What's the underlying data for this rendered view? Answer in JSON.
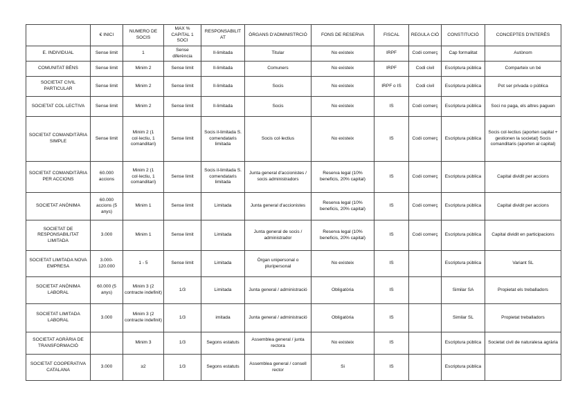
{
  "table": {
    "headers": [
      "",
      "€ INICI",
      "NUMERO DE SOCIS",
      "MAX % CAPITAL 1 SOCI",
      "RESPONSABILIT AT",
      "ÒRGANS D'ADMINISTRCIÓ",
      "FONS DE RESERVA",
      "FISCAL",
      "REGULA CIÓ",
      "CONSTITUCIÓ",
      "CONCEPTES D'INTERÈS"
    ],
    "rows": [
      [
        "E. INDIVIDUAL",
        "Sense limit",
        "1",
        "Sense diferència",
        "Il-limitada",
        "Titular",
        "No existeix",
        "IRPF",
        "Codi comerç",
        "Cap formalitat",
        "Autònom"
      ],
      [
        "COMUNITAT BÉNS",
        "Sense limit",
        "Minim 2",
        "Sense limit",
        "Il-limitada",
        "Comuners",
        "No existeix",
        "IRPF",
        "Codi civil",
        "Escriptura pública",
        "Comparteix un bé"
      ],
      [
        "SOCIETAT CIVIL PARTICULAR",
        "Sense limit",
        "Minim 2",
        "Sense limit",
        "Il-limitada",
        "Socis",
        "No existeix",
        "IRPF o IS",
        "Codi civil",
        "Escriptura pública",
        "Pot ser privada o pública"
      ],
      [
        "SOCIETAT COL·LECTIVA",
        "Sense limit",
        "Minim 2",
        "Sense limit",
        "Il-limitada",
        "Socis",
        "No existeix",
        "IS",
        "Codi comerç",
        "Escriptura pública",
        "Soci no paga, els altres paguen"
      ],
      [
        "SOCIETAT COMANDITÀRIA SIMPLE",
        "Sense limit",
        "Minim 2 (1 col·lectiu, 1 comanditari)",
        "Sense limit",
        "Socis il-limitada S. comendataris limitada",
        "Socis col·lectius",
        "No existeix",
        "IS",
        "Codi comerç",
        "Escriptura pública",
        "Socis col·lectius (aporten capital + gestionen la societat) Socis comanditaris (aporten al capital)"
      ],
      [
        "SOCIETAT COMANDITÀRIA PER ACCIONS",
        "60.000 accions",
        "Minim 2 (1 col·lectiu, 1 comanditari)",
        "Sense limit",
        "Socis il-limitada S. comendataris limitada",
        "Junta general d'accionistes / socis administradors",
        "Reserva legal (10% beneficis, 20% capital)",
        "IS",
        "Codi comerç",
        "Escriptura pública",
        "Capital dividit per accions"
      ],
      [
        "SOCIETAT ANÒNIMA",
        "60.000 accions (5 anys)",
        "Minim 1",
        "Sense limit",
        "Limitada",
        "Junta general d'accionistes",
        "Reserva legal (10% beneficis, 20% capital)",
        "IS",
        "Codi comerç",
        "Escriptura pública",
        "Capital dividit per accions"
      ],
      [
        "SOCIETAT DE RESPONSABILITAT LIMITADA",
        "3.000",
        "Minim 1",
        "Sense limit",
        "Limitada",
        "Junta general de socis / administrador",
        "Reserva legal (10% beneficis, 20% capital)",
        "IS",
        "Codi comerç",
        "Escriptura pública",
        "Capital dividit en participacions"
      ],
      [
        "SOCIETAT LIMITADA NOVA EMPRESA",
        "3.000-120.000",
        "1 - 5",
        "Sense limit",
        "Limitada",
        "Òrgan unipersonal o pluripersonal",
        "No existeix",
        "IS",
        "",
        "Escriptura pública",
        "Variant SL"
      ],
      [
        "SOCIETAT ANÒNIMA LABORAL",
        "60.000 (5 anys)",
        "Minim 3 (2 contracte indefinit)",
        "1/3",
        "Limitada",
        "Junta general / administració",
        "Obligatòria",
        "IS",
        "",
        "Similar SA",
        "Propietat els treballadors"
      ],
      [
        "SOCIETAT LIMITADA LABORAL",
        "3.000",
        "Minim 3 (2 contracte indefinit)",
        "1/3",
        "imitada",
        "Junta general / administració",
        "Obligatòria",
        "IS",
        "",
        "Similar SL",
        "Propietat treballadors"
      ],
      [
        "SOCIETAT AGRÀRIA DE TRANSFORMACIÓ",
        "",
        "Minim 3",
        "1/3",
        "Segons estatuts",
        "Assemblea general / junta rectora",
        "No existeix",
        "IS",
        "",
        "Escriptura pública",
        "Societat civil de naturalesa agrària"
      ],
      [
        "SOCIETAT COOPERATIVA CATALANA",
        "3.000",
        "≥2",
        "1/3",
        "Segons estatuts",
        "Assemblea general / consell rector",
        "Si",
        "IS",
        "",
        "Escriptura pública",
        ""
      ]
    ]
  }
}
